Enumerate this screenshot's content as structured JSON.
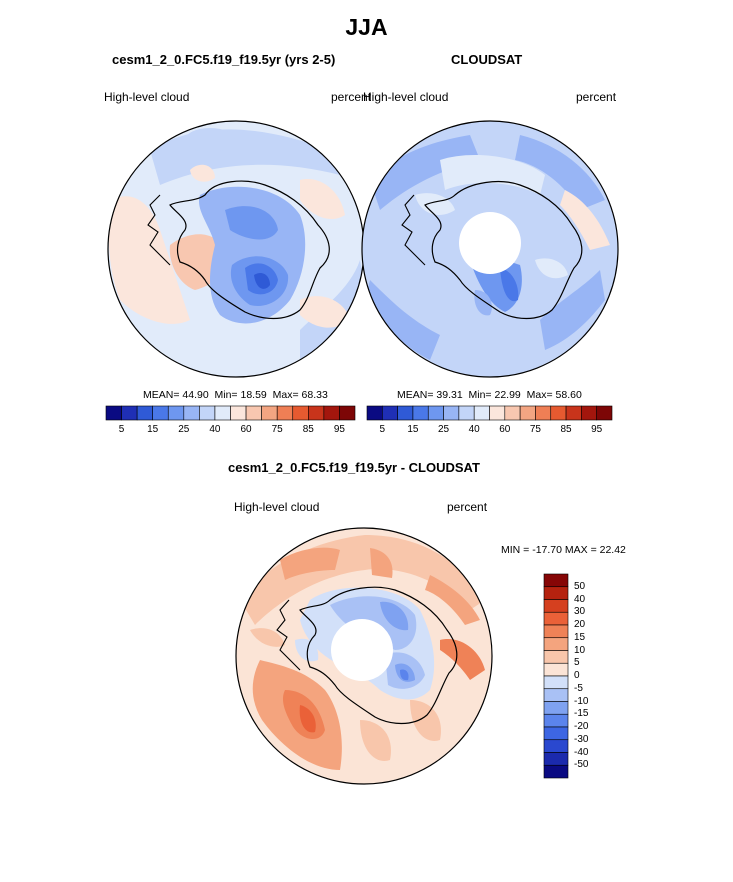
{
  "title": "JJA",
  "colors": {
    "abs_scale": [
      "#0a0a82",
      "#1f2fb5",
      "#2f5ad6",
      "#4a78e8",
      "#6e97f0",
      "#98b5f5",
      "#c3d5f8",
      "#e1ebfa",
      "#fbe6dc",
      "#f8c7b0",
      "#f3a582",
      "#ef7f55",
      "#e65a30",
      "#c8341b",
      "#a3160d",
      "#7d0606"
    ],
    "diff_scale": [
      "#0a0a82",
      "#1b2aad",
      "#2a48cf",
      "#3d66e3",
      "#5b84ec",
      "#7fa2f1",
      "#a9c1f5",
      "#d2e0f9",
      "#fbe4d6",
      "#f8c6ab",
      "#f4a47e",
      "#ef8257",
      "#ea6138",
      "#d5401f",
      "#b5220f",
      "#860606"
    ]
  },
  "panels": {
    "model": {
      "title": "cesm1_2_0.FC5.f19_f19.5yr (yrs 2-5)",
      "left_label": "High-level cloud",
      "right_label": "percent",
      "stats": {
        "mean_label": "MEAN=",
        "mean": "44.90",
        "min_label": "Min=",
        "min": "18.59",
        "max_label": "Max=",
        "max": "68.33"
      }
    },
    "obs": {
      "title": "CLOUDSAT",
      "left_label": "High-level cloud",
      "right_label": "percent",
      "stats": {
        "mean_label": "MEAN=",
        "mean": "39.31",
        "min_label": "Min=",
        "min": "22.99",
        "max_label": "Max=",
        "max": "58.60"
      }
    },
    "diff": {
      "title": "cesm1_2_0.FC5.f19_f19.5yr - CLOUDSAT",
      "left_label": "High-level cloud",
      "right_label": "percent",
      "minmax": "MIN = -17.70 MAX =  22.42"
    }
  },
  "chart_data": [
    {
      "type": "heatmap",
      "projection": "south-polar-stereographic",
      "title": "cesm1_2_0.FC5.f19_f19.5yr (yrs 2-5)",
      "variable": "High-level cloud",
      "units": "percent",
      "mean": 44.9,
      "min": 18.59,
      "max": 68.33,
      "colorbar_levels": [
        5,
        10,
        15,
        20,
        25,
        30,
        40,
        50,
        60,
        65,
        75,
        80,
        85,
        90,
        95
      ],
      "colorbar_tick_labels": [
        "5",
        "15",
        "25",
        "40",
        "60",
        "75",
        "85",
        "95"
      ]
    },
    {
      "type": "heatmap",
      "projection": "south-polar-stereographic",
      "title": "CLOUDSAT",
      "variable": "High-level cloud",
      "units": "percent",
      "mean": 39.31,
      "min": 22.99,
      "max": 58.6,
      "colorbar_levels": [
        5,
        10,
        15,
        20,
        25,
        30,
        40,
        50,
        60,
        65,
        75,
        80,
        85,
        90,
        95
      ],
      "colorbar_tick_labels": [
        "5",
        "15",
        "25",
        "40",
        "60",
        "75",
        "85",
        "95"
      ]
    },
    {
      "type": "heatmap",
      "projection": "south-polar-stereographic",
      "title": "cesm1_2_0.FC5.f19_f19.5yr - CLOUDSAT",
      "variable": "High-level cloud",
      "units": "percent",
      "min": -17.7,
      "max": 22.42,
      "colorbar_levels": [
        50,
        40,
        30,
        20,
        15,
        10,
        5,
        0,
        -5,
        -10,
        -15,
        -20,
        -30,
        -40,
        -50
      ],
      "colorbar_tick_labels": [
        "50",
        "40",
        "30",
        "20",
        "15",
        "10",
        "5",
        "0",
        "-5",
        "-10",
        "-15",
        "-20",
        "-30",
        "-40",
        "-50"
      ]
    }
  ]
}
